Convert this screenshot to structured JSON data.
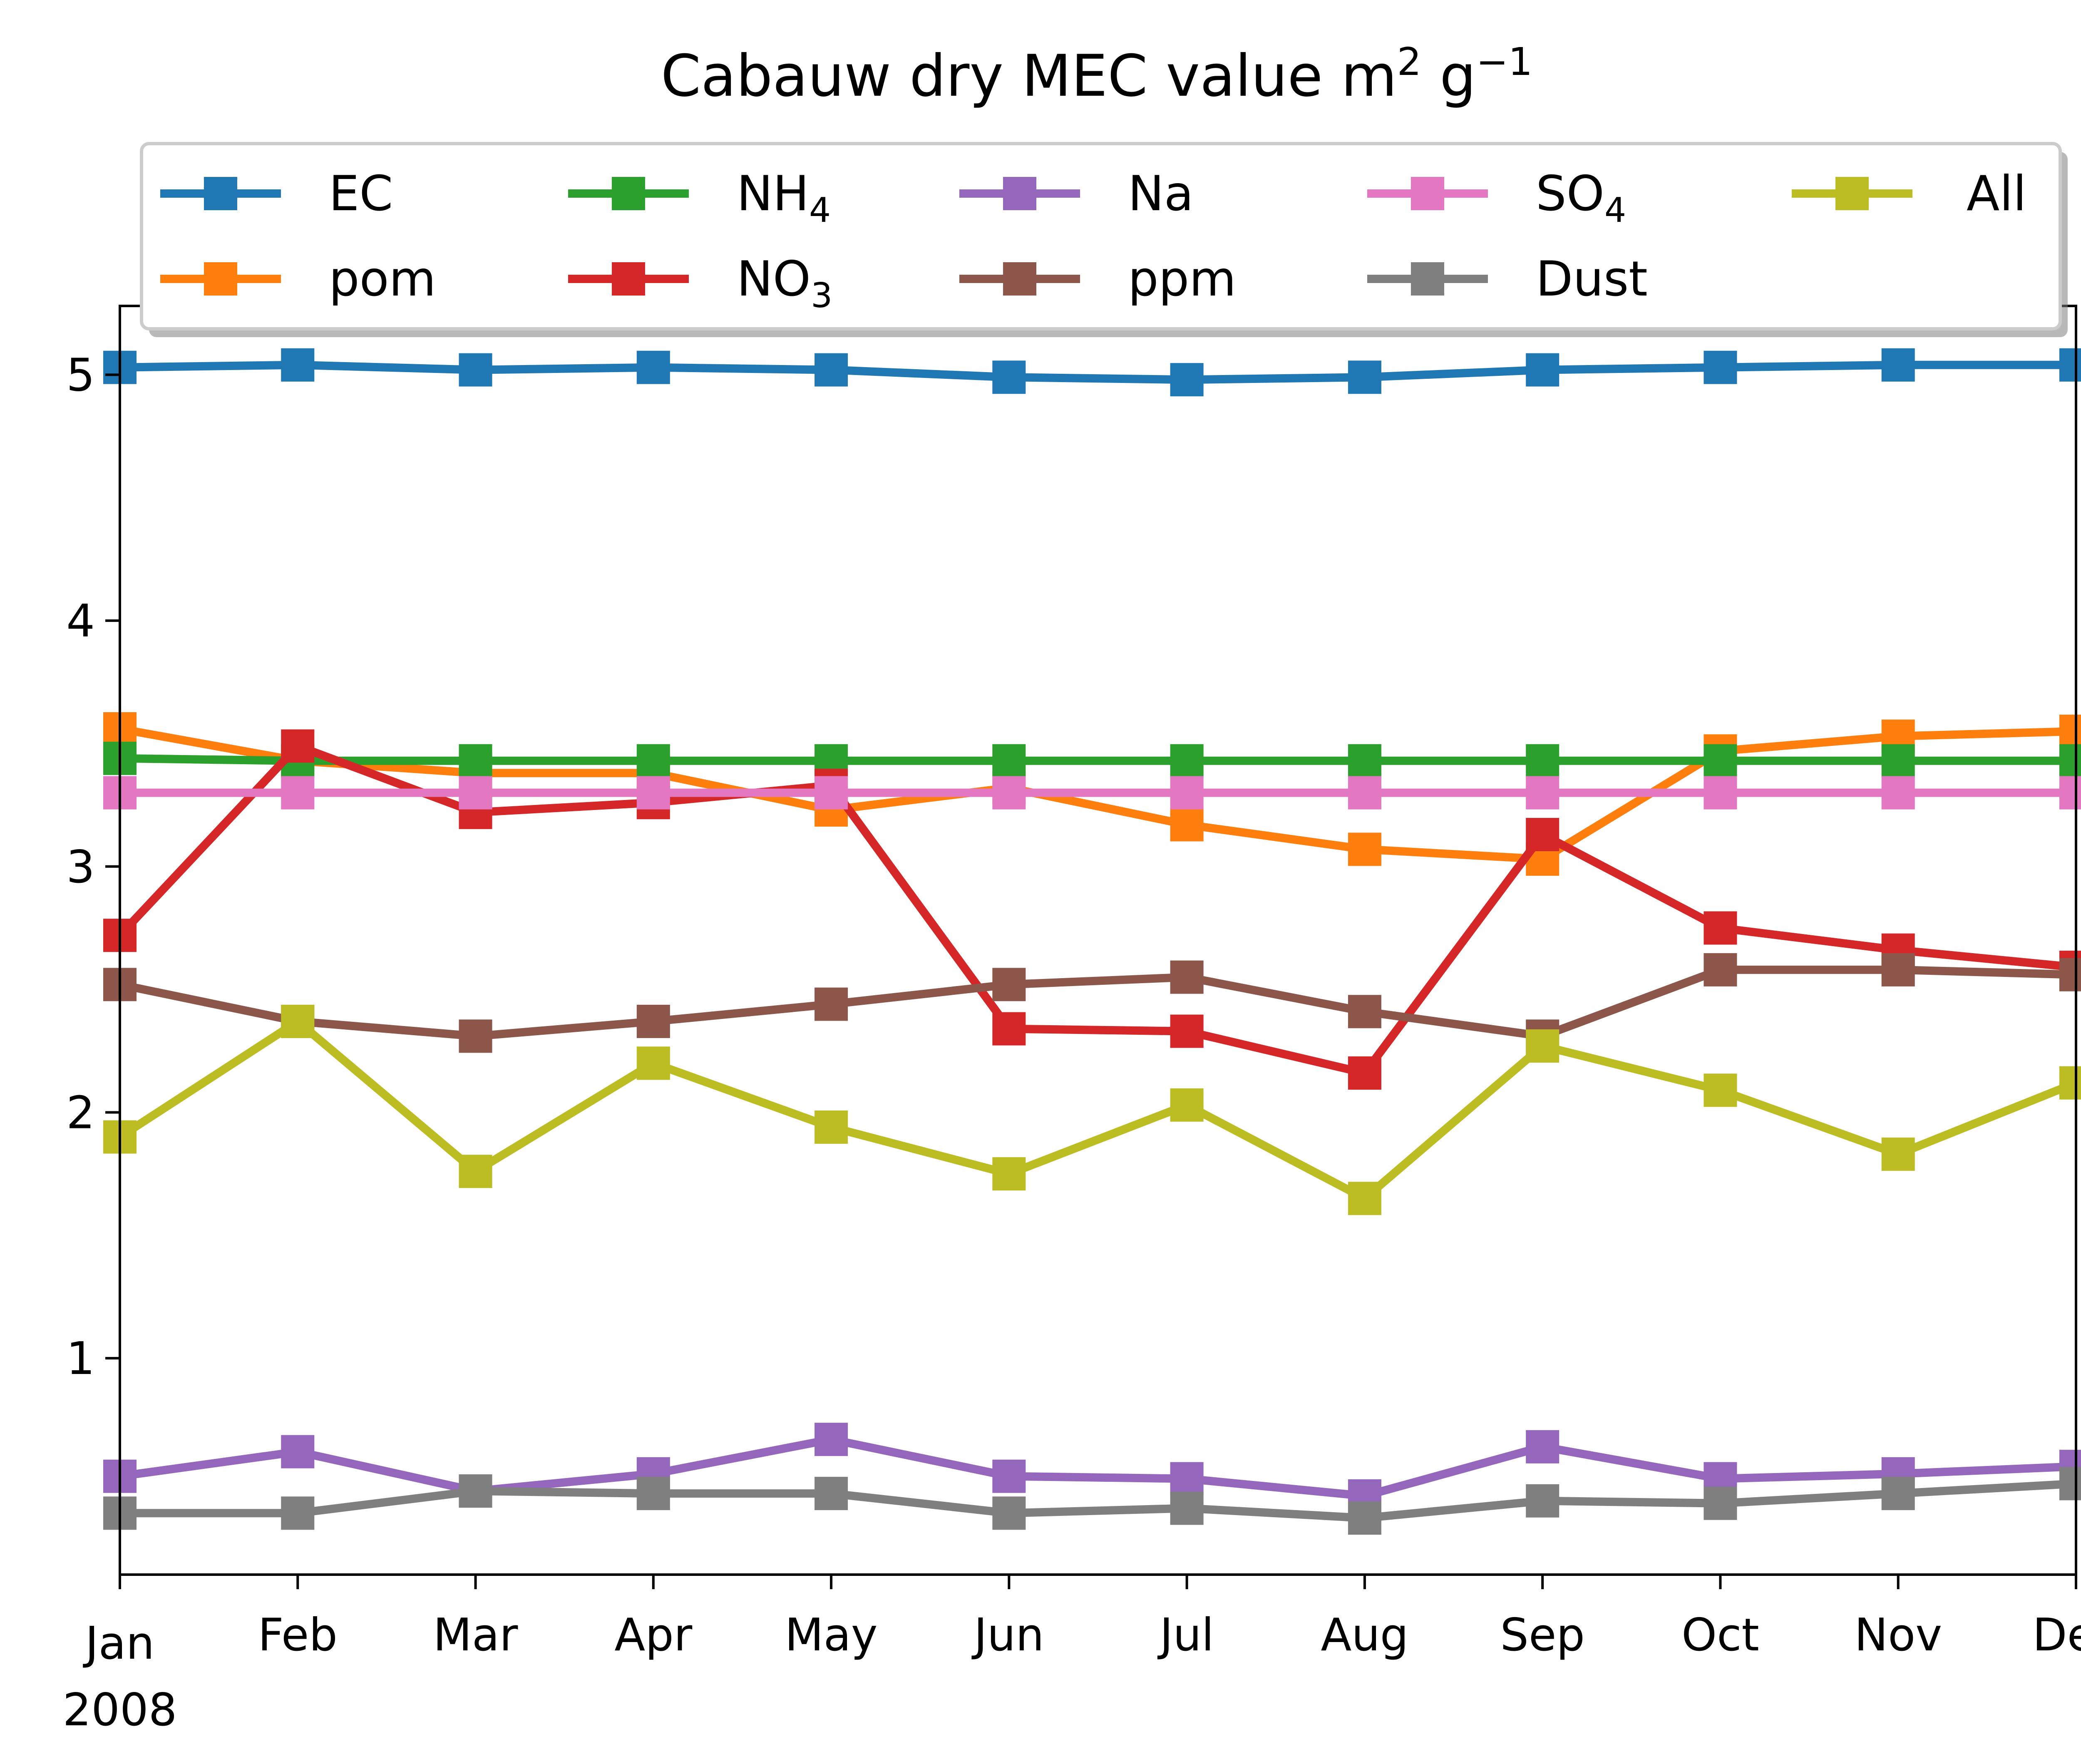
{
  "chart_data": {
    "type": "line",
    "title": "Cabauw dry MEC value m² g⁻¹",
    "title_main": "Cabauw dry MEC value m",
    "title_sup1": "2",
    "title_mid": " g",
    "title_sup2": "−1",
    "xlabel": "",
    "ylabel": "",
    "x": [
      "Jan",
      "Feb",
      "Mar",
      "Apr",
      "May",
      "Jun",
      "Jul",
      "Aug",
      "Sep",
      "Oct",
      "Nov",
      "Dec"
    ],
    "x_year_label": "2008",
    "yticks": [
      1,
      2,
      3,
      4,
      5
    ],
    "ylim": [
      0.12,
      5.28
    ],
    "grid": false,
    "legend_position": "top",
    "marker": "square",
    "series": [
      {
        "name": "EC",
        "name_main": "EC",
        "name_sub": "",
        "color": "#1f77b4",
        "values": [
          5.03,
          5.04,
          5.02,
          5.03,
          5.02,
          4.99,
          4.98,
          4.99,
          5.02,
          5.03,
          5.04,
          5.04
        ]
      },
      {
        "name": "pom",
        "name_main": "pom",
        "name_sub": "",
        "color": "#ff7f0e",
        "values": [
          3.56,
          3.43,
          3.38,
          3.38,
          3.23,
          3.32,
          3.17,
          3.07,
          3.03,
          3.47,
          3.53,
          3.55
        ]
      },
      {
        "name": "NH4",
        "name_main": "NH",
        "name_sub": "4",
        "color": "#2ca02c",
        "values": [
          3.44,
          3.43,
          3.43,
          3.43,
          3.43,
          3.43,
          3.43,
          3.43,
          3.43,
          3.43,
          3.43,
          3.43
        ]
      },
      {
        "name": "NO3",
        "name_main": "NO",
        "name_sub": "3",
        "color": "#d62728",
        "values": [
          2.72,
          3.49,
          3.22,
          3.26,
          3.33,
          2.34,
          2.33,
          2.16,
          3.13,
          2.75,
          2.66,
          2.59
        ]
      },
      {
        "name": "Na",
        "name_main": "Na",
        "name_sub": "",
        "color": "#9467bd",
        "values": [
          0.52,
          0.62,
          0.46,
          0.53,
          0.67,
          0.52,
          0.51,
          0.44,
          0.64,
          0.51,
          0.53,
          0.56
        ]
      },
      {
        "name": "ppm",
        "name_main": "ppm",
        "name_sub": "",
        "color": "#8c564b",
        "values": [
          2.52,
          2.37,
          2.31,
          2.37,
          2.44,
          2.52,
          2.55,
          2.41,
          2.31,
          2.58,
          2.58,
          2.56
        ]
      },
      {
        "name": "SO4",
        "name_main": "SO",
        "name_sub": "4",
        "color": "#e377c2",
        "values": [
          3.3,
          3.3,
          3.3,
          3.3,
          3.3,
          3.3,
          3.3,
          3.3,
          3.3,
          3.3,
          3.3,
          3.3
        ]
      },
      {
        "name": "Dust",
        "name_main": "Dust",
        "name_sub": "",
        "color": "#7f7f7f",
        "values": [
          0.37,
          0.37,
          0.46,
          0.45,
          0.45,
          0.37,
          0.39,
          0.35,
          0.42,
          0.41,
          0.45,
          0.49
        ]
      },
      {
        "name": "All",
        "name_main": "All",
        "name_sub": "",
        "color": "#bcbd22",
        "values": [
          1.9,
          2.37,
          1.76,
          2.2,
          1.94,
          1.75,
          2.03,
          1.65,
          2.27,
          2.09,
          1.83,
          2.12
        ]
      }
    ]
  }
}
